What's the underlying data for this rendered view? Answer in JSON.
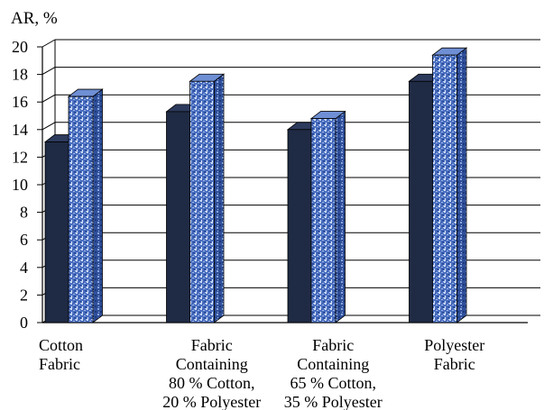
{
  "chart_data": {
    "type": "bar",
    "ylabel": "AR, %",
    "ylim": [
      0,
      20
    ],
    "yticks": [
      0,
      2,
      4,
      6,
      8,
      10,
      12,
      14,
      16,
      18,
      20
    ],
    "categories": [
      [
        "Cotton",
        "Fabric"
      ],
      [
        "Fabric",
        "Containing",
        "80 % Cotton,",
        "20 % Polyester"
      ],
      [
        "Fabric",
        "Containing",
        "65 % Cotton,",
        "35 % Polyester"
      ],
      [
        "Polyester",
        "Fabric"
      ]
    ],
    "series": [
      {
        "values": [
          13.1,
          15.3,
          14.0,
          17.5
        ],
        "color": "#1f2a44"
      },
      {
        "values": [
          16.4,
          17.5,
          14.8,
          19.4
        ],
        "color": "#4a6fc0"
      }
    ],
    "grid": true,
    "style": "3d-bars"
  }
}
